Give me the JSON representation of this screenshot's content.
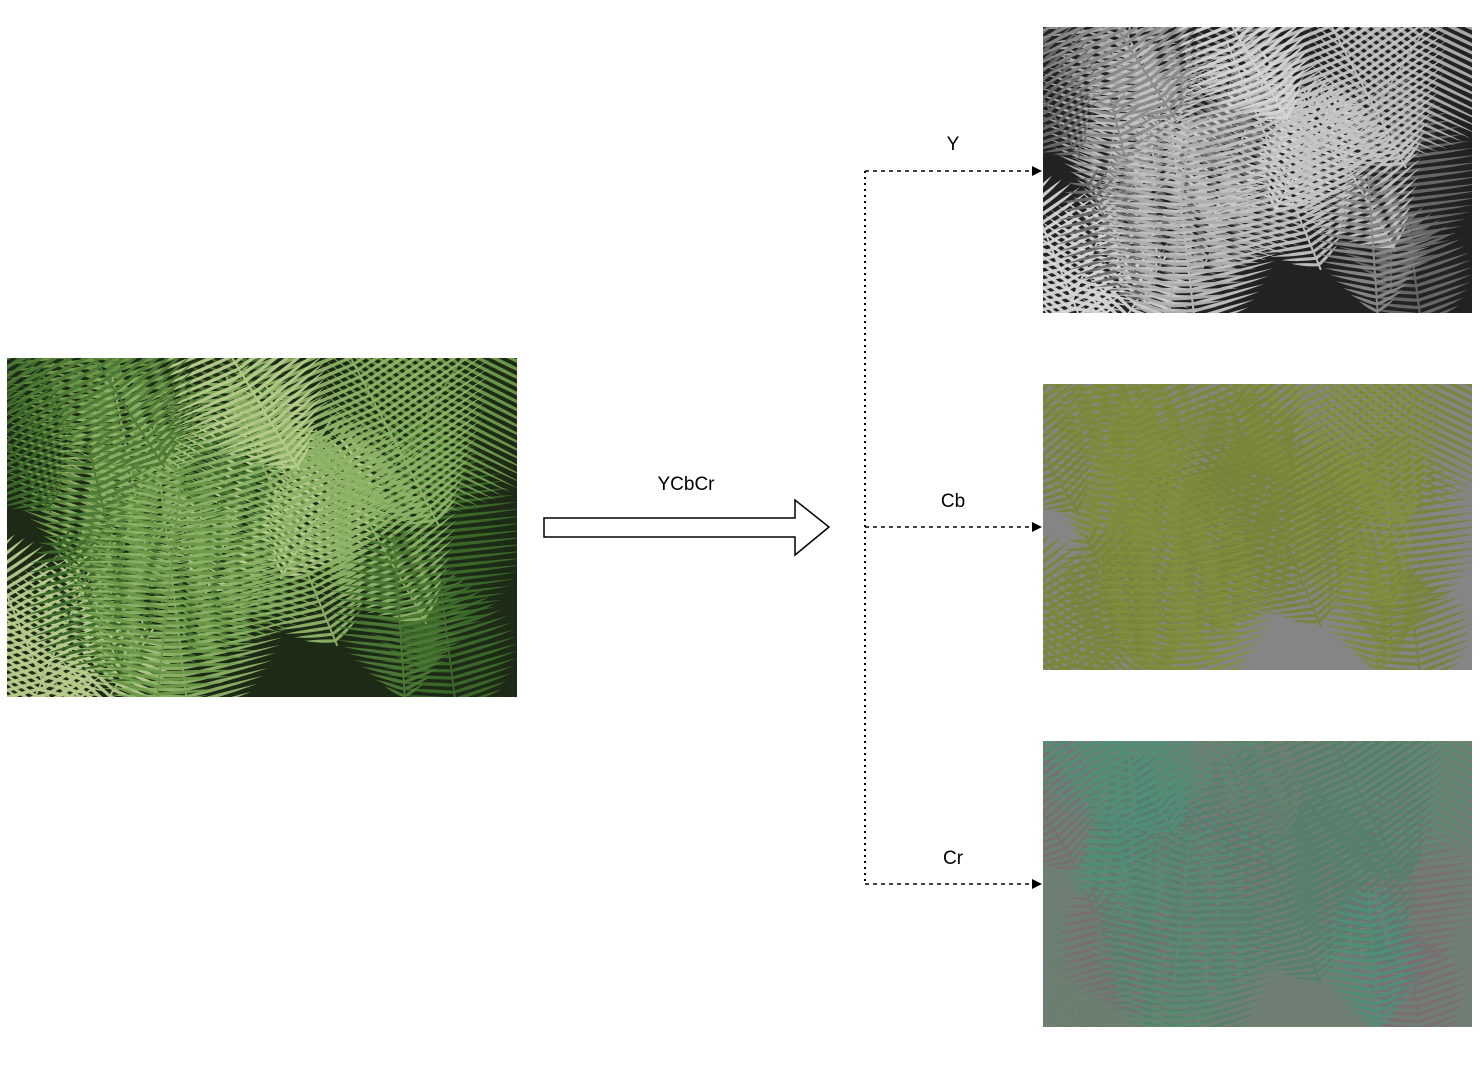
{
  "conversion": {
    "label": "YCbCr"
  },
  "channels": [
    {
      "label": "Y",
      "tint": "#9a9a9a"
    },
    {
      "label": "Cb",
      "tint": "#7d8a3e"
    },
    {
      "label": "Cr",
      "tint": "#5e8a76"
    }
  ],
  "source_image": {
    "subject": "fern-leaves-photo",
    "colors": {
      "dark": "#1c2a16",
      "mid": "#4e7a36",
      "light": "#b7cd8c"
    }
  },
  "colors": {
    "line": "#000000",
    "arrow_outline": "#000000",
    "arrow_fill": "#ffffff",
    "y_dark": "#222222",
    "y_light": "#d6d6d6",
    "cb_base": "#7f8a3c",
    "cb_gray": "#858585",
    "cr_base": "#68806f",
    "cr_green": "#4f8f78"
  }
}
